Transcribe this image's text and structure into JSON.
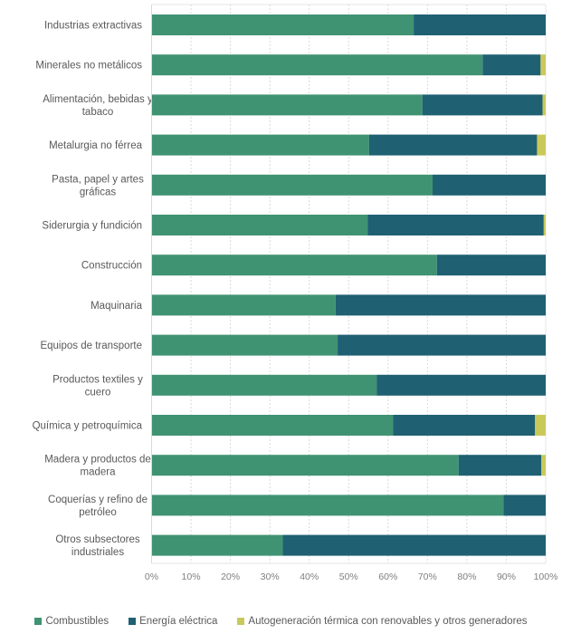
{
  "chart_data": {
    "type": "bar",
    "orientation": "horizontal",
    "stacked": "percent",
    "title": "",
    "xlabel": "",
    "ylabel": "",
    "xlim": [
      0,
      100
    ],
    "x_ticks": [
      "0%",
      "10%",
      "20%",
      "30%",
      "40%",
      "50%",
      "60%",
      "70%",
      "80%",
      "90%",
      "100%"
    ],
    "grid": "vertical dashed",
    "legend_position": "bottom",
    "categories": [
      "Industrias extractivas",
      "Minerales no metálicos",
      "Alimentación, bebidas y tabaco",
      "Metalurgia no férrea",
      "Pasta, papel y artes gráficas",
      "Siderurgia y fundición",
      "Construcción",
      "Maquinaria",
      "Equipos de transporte",
      "Productos textiles y cuero",
      "Química y petroquímica",
      "Madera y productos de madera",
      "Coquerías y refino de petróleo",
      "Otros subsectores industriales"
    ],
    "category_label_lines": [
      [
        "Industrias extractivas"
      ],
      [
        "Minerales no metálicos"
      ],
      [
        "Alimentación, bebidas y",
        "tabaco"
      ],
      [
        "Metalurgia no férrea"
      ],
      [
        "Pasta, papel y artes",
        "gráficas"
      ],
      [
        "Siderurgia y fundición"
      ],
      [
        "Construcción"
      ],
      [
        "Maquinaria"
      ],
      [
        "Equipos de transporte"
      ],
      [
        "Productos textiles y",
        "cuero"
      ],
      [
        "Química y petroquímica"
      ],
      [
        "Madera y productos de",
        "madera"
      ],
      [
        "Coquerías y refino de",
        "petróleo"
      ],
      [
        "Otros subsectores",
        "industriales"
      ]
    ],
    "series": [
      {
        "name": "Combustibles",
        "color": "#3f9373",
        "values": [
          66.5,
          84.0,
          68.7,
          55.2,
          71.3,
          54.8,
          72.4,
          46.7,
          47.2,
          57.1,
          61.3,
          77.9,
          89.3,
          33.3
        ]
      },
      {
        "name": "Energía eléctrica",
        "color": "#1f6073",
        "values": [
          33.5,
          14.7,
          30.5,
          42.6,
          28.7,
          44.7,
          27.6,
          53.3,
          52.8,
          42.9,
          36.0,
          21.0,
          10.7,
          66.7
        ]
      },
      {
        "name": "Autogeneración térmica con renovables y otros generadores",
        "color": "#c9c95a",
        "values": [
          0.0,
          1.3,
          0.8,
          2.2,
          0.0,
          0.5,
          0.0,
          0.0,
          0.0,
          0.0,
          2.7,
          1.1,
          0.0,
          0.0
        ]
      }
    ]
  }
}
